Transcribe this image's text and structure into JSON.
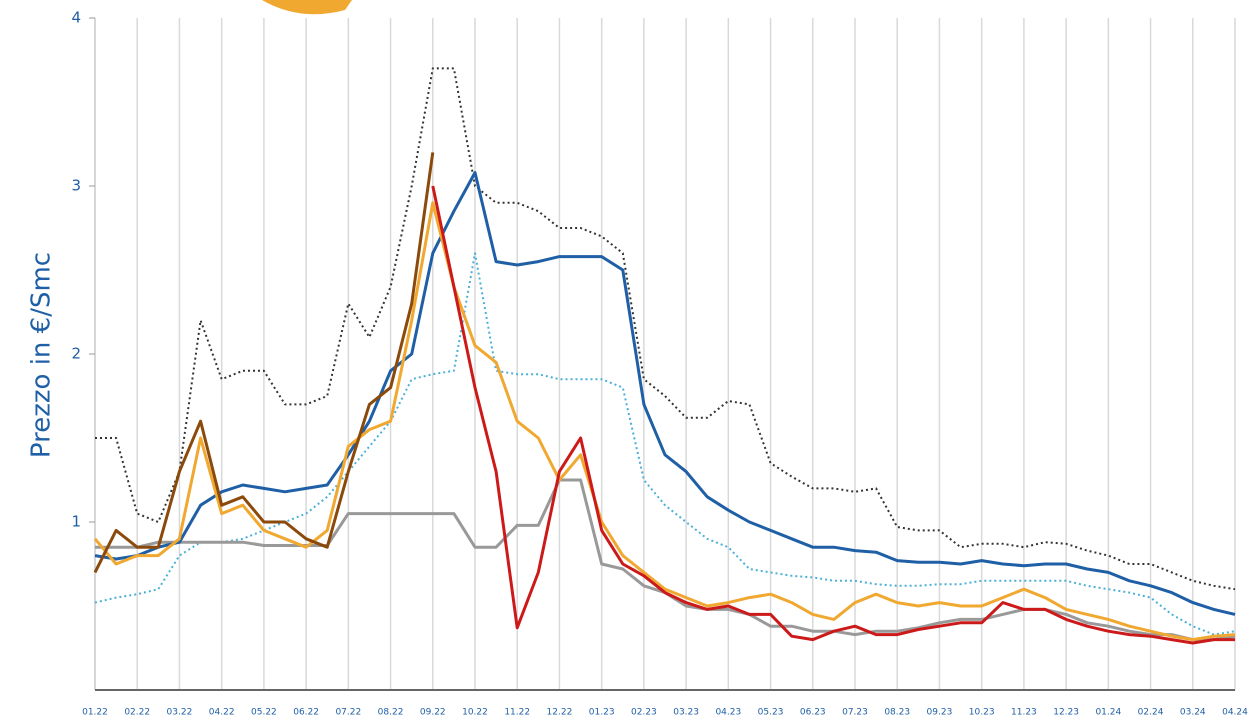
{
  "chart_data": {
    "type": "line",
    "y_label": "Prezzo in €/Smc",
    "categories": [
      "01.22",
      null,
      "02.22",
      null,
      "03.22",
      null,
      "04.22",
      null,
      "05.22",
      null,
      "06.22",
      null,
      "07.22",
      null,
      "08.22",
      null,
      "09.22",
      null,
      "10.22",
      null,
      "11.22",
      null,
      "12.22",
      null,
      "01.23",
      null,
      "02.23",
      null,
      "03.23",
      null,
      "04.23",
      null,
      "05.23",
      null,
      "06.23",
      null,
      "07.23",
      null,
      "08.23",
      null,
      "09.23",
      null,
      "10.23",
      null,
      "11.23",
      null,
      "12.23",
      null,
      "01.24",
      null,
      "02.24",
      null,
      "03.24",
      null,
      "04.24"
    ],
    "ylim": [
      0,
      4
    ],
    "yticks": [
      1,
      2,
      3,
      4
    ],
    "series": [
      {
        "color": "#333333",
        "style": "dotted",
        "values": [
          1.5,
          1.5,
          1.05,
          1.0,
          1.3,
          2.2,
          1.85,
          1.9,
          1.9,
          1.7,
          1.7,
          1.75,
          2.3,
          2.1,
          2.4,
          3.0,
          3.7,
          3.7,
          3.0,
          2.9,
          2.9,
          2.85,
          2.75,
          2.75,
          2.7,
          2.6,
          1.85,
          1.75,
          1.62,
          1.62,
          1.72,
          1.7,
          1.35,
          1.27,
          1.2,
          1.2,
          1.18,
          1.2,
          0.97,
          0.95,
          0.95,
          0.85,
          0.87,
          0.87,
          0.85,
          0.88,
          0.87,
          0.83,
          0.8,
          0.75,
          0.75,
          0.7,
          0.65,
          0.62,
          0.6
        ]
      },
      {
        "color": "#4bb0d8",
        "style": "dotted",
        "values": [
          0.52,
          0.55,
          0.57,
          0.6,
          0.8,
          0.88,
          0.88,
          0.9,
          0.95,
          1.0,
          1.05,
          1.15,
          1.3,
          1.45,
          1.6,
          1.85,
          1.88,
          1.9,
          2.6,
          1.9,
          1.88,
          1.88,
          1.85,
          1.85,
          1.85,
          1.8,
          1.25,
          1.1,
          1.0,
          0.9,
          0.85,
          0.72,
          0.7,
          0.68,
          0.67,
          0.65,
          0.65,
          0.63,
          0.62,
          0.62,
          0.63,
          0.63,
          0.65,
          0.65,
          0.65,
          0.65,
          0.65,
          0.62,
          0.6,
          0.58,
          0.55,
          0.45,
          0.38,
          0.33,
          0.35
        ]
      },
      {
        "color": "#999999",
        "style": "solid",
        "values": [
          0.85,
          0.85,
          0.85,
          0.88,
          0.88,
          0.88,
          0.88,
          0.88,
          0.86,
          0.86,
          0.86,
          0.86,
          1.05,
          1.05,
          1.05,
          1.05,
          1.05,
          1.05,
          0.85,
          0.85,
          0.98,
          0.98,
          1.25,
          1.25,
          0.75,
          0.72,
          0.62,
          0.58,
          0.5,
          0.48,
          0.48,
          0.45,
          0.38,
          0.38,
          0.35,
          0.35,
          0.33,
          0.35,
          0.35,
          0.37,
          0.4,
          0.42,
          0.42,
          0.45,
          0.48,
          0.48,
          0.45,
          0.4,
          0.38,
          0.35,
          0.33,
          0.33,
          0.3,
          0.3,
          0.32
        ]
      },
      {
        "color": "#1f5fa6",
        "style": "solid",
        "values": [
          0.8,
          0.78,
          0.8,
          0.85,
          0.88,
          1.1,
          1.18,
          1.22,
          1.2,
          1.18,
          1.2,
          1.22,
          1.4,
          1.6,
          1.9,
          2.0,
          2.6,
          2.85,
          3.08,
          2.55,
          2.53,
          2.55,
          2.58,
          2.58,
          2.58,
          2.5,
          1.7,
          1.4,
          1.3,
          1.15,
          1.07,
          1.0,
          0.95,
          0.9,
          0.85,
          0.85,
          0.83,
          0.82,
          0.77,
          0.76,
          0.76,
          0.75,
          0.77,
          0.75,
          0.74,
          0.75,
          0.75,
          0.72,
          0.7,
          0.65,
          0.62,
          0.58,
          0.52,
          0.48,
          0.45
        ]
      },
      {
        "color": "#f0a830",
        "style": "solid",
        "values": [
          0.9,
          0.75,
          0.8,
          0.8,
          0.9,
          1.5,
          1.05,
          1.1,
          0.95,
          0.9,
          0.85,
          0.95,
          1.45,
          1.55,
          1.6,
          2.2,
          2.9,
          2.4,
          2.05,
          1.95,
          1.6,
          1.5,
          1.25,
          1.4,
          1.0,
          0.8,
          0.7,
          0.6,
          0.55,
          0.5,
          0.52,
          0.55,
          0.57,
          0.52,
          0.45,
          0.42,
          0.52,
          0.57,
          0.52,
          0.5,
          0.52,
          0.5,
          0.5,
          0.55,
          0.6,
          0.55,
          0.48,
          0.45,
          0.42,
          0.38,
          0.35,
          0.32,
          0.3,
          0.32,
          0.33
        ]
      },
      {
        "color": "#cc1a1a",
        "style": "solid",
        "values": [
          null,
          null,
          null,
          null,
          null,
          null,
          null,
          null,
          null,
          null,
          null,
          null,
          null,
          null,
          null,
          null,
          3.0,
          2.4,
          1.8,
          1.3,
          0.37,
          0.7,
          1.3,
          1.5,
          0.95,
          0.75,
          0.68,
          0.58,
          0.52,
          0.48,
          0.5,
          0.45,
          0.45,
          0.32,
          0.3,
          0.35,
          0.38,
          0.33,
          0.33,
          0.36,
          0.38,
          0.4,
          0.4,
          0.52,
          0.48,
          0.48,
          0.42,
          0.38,
          0.35,
          0.33,
          0.32,
          0.3,
          0.28,
          0.3,
          0.3
        ]
      },
      {
        "color": "#8b4a0c",
        "style": "solid",
        "values": [
          0.7,
          0.95,
          0.85,
          0.85,
          1.3,
          1.6,
          1.1,
          1.15,
          1.0,
          1.0,
          0.9,
          0.85,
          1.3,
          1.7,
          1.8,
          2.3,
          3.2,
          null,
          null,
          null,
          null,
          null,
          null,
          null,
          null,
          null,
          null,
          null,
          null,
          null,
          null,
          null,
          null,
          null,
          null,
          null,
          null,
          null,
          null,
          null,
          null,
          null,
          null,
          null,
          null,
          null,
          null,
          null,
          null,
          null,
          null,
          null,
          null,
          null,
          null
        ]
      }
    ]
  }
}
